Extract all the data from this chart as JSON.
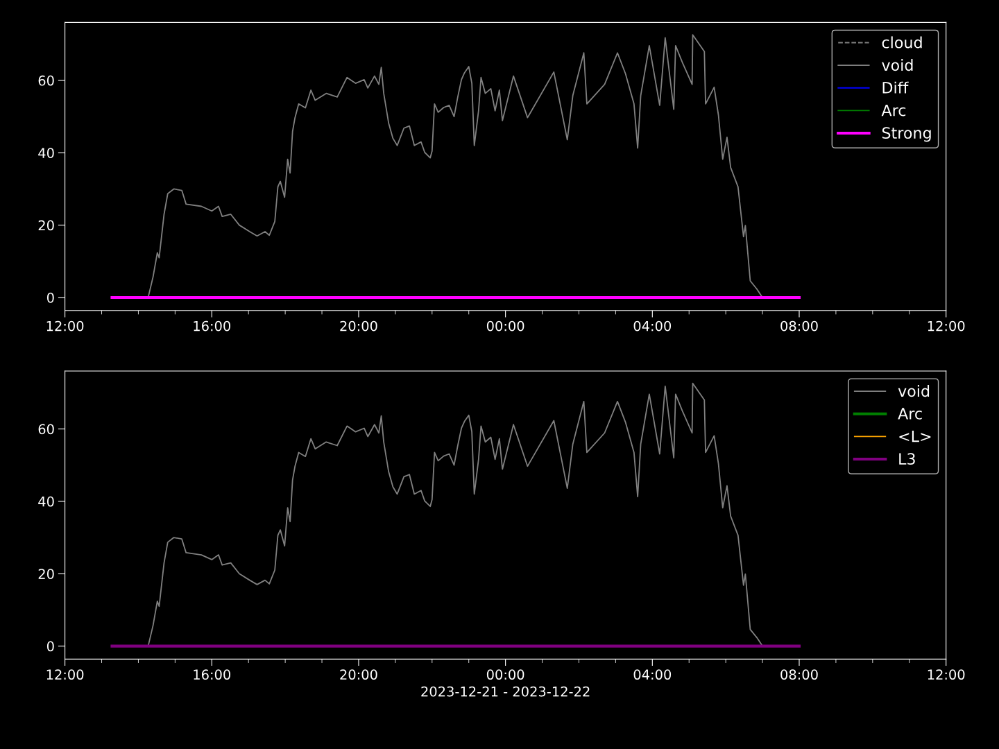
{
  "chart_data": [
    {
      "type": "line",
      "xlim": [
        "2023-12-21T12:00",
        "2023-12-22T12:00"
      ],
      "ylim": [
        -3.6,
        76
      ],
      "yticks": [
        0,
        20,
        40,
        60
      ],
      "xticks": [
        {
          "value": "2023-12-21T12:00",
          "label": "12:00"
        },
        {
          "value": "2023-12-21T13:00",
          "label": null
        },
        {
          "value": "2023-12-21T14:00",
          "label": null
        },
        {
          "value": "2023-12-21T15:00",
          "label": null
        },
        {
          "value": "2023-12-21T16:00",
          "label": "16:00"
        },
        {
          "value": "2023-12-21T17:00",
          "label": null
        },
        {
          "value": "2023-12-21T18:00",
          "label": null
        },
        {
          "value": "2023-12-21T19:00",
          "label": null
        },
        {
          "value": "2023-12-21T20:00",
          "label": "20:00"
        },
        {
          "value": "2023-12-21T21:00",
          "label": null
        },
        {
          "value": "2023-12-21T22:00",
          "label": null
        },
        {
          "value": "2023-12-21T23:00",
          "label": null
        },
        {
          "value": "2023-12-22T00:00",
          "label": "00:00"
        },
        {
          "value": "2023-12-22T01:00",
          "label": null
        },
        {
          "value": "2023-12-22T02:00",
          "label": null
        },
        {
          "value": "2023-12-22T03:00",
          "label": null
        },
        {
          "value": "2023-12-22T04:00",
          "label": "04:00"
        },
        {
          "value": "2023-12-22T05:00",
          "label": null
        },
        {
          "value": "2023-12-22T06:00",
          "label": null
        },
        {
          "value": "2023-12-22T07:00",
          "label": null
        },
        {
          "value": "2023-12-22T08:00",
          "label": "08:00"
        },
        {
          "value": "2023-12-22T09:00",
          "label": null
        },
        {
          "value": "2023-12-22T10:00",
          "label": null
        },
        {
          "value": "2023-12-22T11:00",
          "label": null
        },
        {
          "value": "2023-12-22T12:00",
          "label": "12:00"
        }
      ],
      "legend": "top right",
      "series": [
        {
          "name": "cloud",
          "color": "#808080",
          "line_style": "dashed"
        },
        {
          "name": "void",
          "color": "#808080",
          "line_style": "solid",
          "x": [
            "2023-12-21T14:16",
            "2023-12-21T14:24",
            "2023-12-21T14:31",
            "2023-12-21T14:34",
            "2023-12-21T14:42",
            "2023-12-21T14:48",
            "2023-12-21T14:58",
            "2023-12-21T15:11",
            "2023-12-21T15:18",
            "2023-12-21T15:43",
            "2023-12-21T16:00",
            "2023-12-21T16:11",
            "2023-12-21T16:17",
            "2023-12-21T16:31",
            "2023-12-21T16:45",
            "2023-12-21T17:02",
            "2023-12-21T17:14",
            "2023-12-21T17:27",
            "2023-12-21T17:34",
            "2023-12-21T17:43",
            "2023-12-21T17:48",
            "2023-12-21T17:52",
            "2023-12-21T17:59",
            "2023-12-21T18:04",
            "2023-12-21T18:08",
            "2023-12-21T18:12",
            "2023-12-21T18:16",
            "2023-12-21T18:22",
            "2023-12-21T18:33",
            "2023-12-21T18:42",
            "2023-12-21T18:49",
            "2023-12-21T19:07",
            "2023-12-21T19:25",
            "2023-12-21T19:41",
            "2023-12-21T19:55",
            "2023-12-21T20:09",
            "2023-12-21T20:15",
            "2023-12-21T20:26",
            "2023-12-21T20:33",
            "2023-12-21T20:37",
            "2023-12-21T20:41",
            "2023-12-21T20:49",
            "2023-12-21T20:56",
            "2023-12-21T21:03",
            "2023-12-21T21:14",
            "2023-12-21T21:23",
            "2023-12-21T21:31",
            "2023-12-21T21:42",
            "2023-12-21T21:48",
            "2023-12-21T21:57",
            "2023-12-21T22:00",
            "2023-12-21T22:04",
            "2023-12-21T22:10",
            "2023-12-21T22:19",
            "2023-12-21T22:28",
            "2023-12-21T22:36",
            "2023-12-21T22:42",
            "2023-12-21T22:48",
            "2023-12-21T22:53",
            "2023-12-21T23:00",
            "2023-12-21T23:05",
            "2023-12-21T23:09",
            "2023-12-21T23:16",
            "2023-12-21T23:20",
            "2023-12-21T23:27",
            "2023-12-21T23:36",
            "2023-12-21T23:43",
            "2023-12-21T23:50",
            "2023-12-21T23:55",
            "2023-12-22T00:13",
            "2023-12-22T00:36",
            "2023-12-22T01:19",
            "2023-12-22T01:41",
            "2023-12-22T01:50",
            "2023-12-22T02:08",
            "2023-12-22T02:13",
            "2023-12-22T02:42",
            "2023-12-22T03:03",
            "2023-12-22T03:16",
            "2023-12-22T03:30",
            "2023-12-22T03:36",
            "2023-12-22T03:41",
            "2023-12-22T03:55",
            "2023-12-22T04:12",
            "2023-12-22T04:21",
            "2023-12-22T04:35",
            "2023-12-22T04:38",
            "2023-12-22T04:49",
            "2023-12-22T05:05",
            "2023-12-22T05:06",
            "2023-12-22T05:25",
            "2023-12-22T05:27",
            "2023-12-22T05:41",
            "2023-12-22T05:48",
            "2023-12-22T05:55",
            "2023-12-22T06:02",
            "2023-12-22T06:08",
            "2023-12-22T06:20",
            "2023-12-22T06:29",
            "2023-12-22T06:32",
            "2023-12-22T06:40",
            "2023-12-22T06:51",
            "2023-12-22T07:00"
          ],
          "values": [
            0,
            5.7,
            12.4,
            11,
            23,
            28.7,
            30,
            29.6,
            25.8,
            25.2,
            23.9,
            25.2,
            22.4,
            23,
            20,
            18.2,
            17,
            18.2,
            17.2,
            21,
            30.6,
            32.1,
            27.7,
            38.2,
            34.4,
            45.9,
            49.7,
            53.5,
            52.4,
            57.3,
            54.5,
            56.4,
            55.4,
            60.8,
            59.2,
            60.2,
            57.9,
            61.2,
            58.9,
            63.6,
            56.4,
            48.2,
            44,
            42,
            46.8,
            47.4,
            42,
            43,
            40.1,
            38.6,
            40.5,
            53.5,
            51.2,
            52.5,
            53.1,
            50,
            55.4,
            60.2,
            62.1,
            63.8,
            59.2,
            42,
            51.6,
            60.8,
            56.4,
            57.7,
            51.6,
            57.3,
            48.9,
            61.2,
            49.7,
            62.3,
            43.6,
            55.8,
            67.6,
            53.5,
            58.9,
            67.6,
            61.9,
            53.5,
            41.3,
            55.8,
            69.6,
            53.1,
            71.8,
            52,
            69.6,
            65,
            58.9,
            72.6,
            68,
            53.5,
            58.1,
            50.4,
            38.2,
            44.3,
            35.9,
            30.6,
            16.8,
            19.9,
            4.6,
            2.3,
            0
          ]
        },
        {
          "name": "Diff",
          "color": "#0000ff",
          "line_style": "solid"
        },
        {
          "name": "Arc",
          "color": "#008000",
          "line_style": "solid"
        },
        {
          "name": "Strong",
          "color": "#ff00ff",
          "line_style": "solid",
          "x": [
            "2023-12-21T13:17",
            "2023-12-22T08:00"
          ],
          "values": [
            0,
            0
          ]
        }
      ]
    },
    {
      "type": "line",
      "xlabel": "2023-12-21 - 2023-12-22",
      "xlim": [
        "2023-12-21T12:00",
        "2023-12-22T12:00"
      ],
      "ylim": [
        -3.6,
        76
      ],
      "yticks": [
        0,
        20,
        40,
        60
      ],
      "xticks": [
        {
          "value": "2023-12-21T12:00",
          "label": "12:00"
        },
        {
          "value": "2023-12-21T13:00",
          "label": null
        },
        {
          "value": "2023-12-21T14:00",
          "label": null
        },
        {
          "value": "2023-12-21T15:00",
          "label": null
        },
        {
          "value": "2023-12-21T16:00",
          "label": "16:00"
        },
        {
          "value": "2023-12-21T17:00",
          "label": null
        },
        {
          "value": "2023-12-21T18:00",
          "label": null
        },
        {
          "value": "2023-12-21T19:00",
          "label": null
        },
        {
          "value": "2023-12-21T20:00",
          "label": "20:00"
        },
        {
          "value": "2023-12-21T21:00",
          "label": null
        },
        {
          "value": "2023-12-21T22:00",
          "label": null
        },
        {
          "value": "2023-12-21T23:00",
          "label": null
        },
        {
          "value": "2023-12-22T00:00",
          "label": "00:00"
        },
        {
          "value": "2023-12-22T01:00",
          "label": null
        },
        {
          "value": "2023-12-22T02:00",
          "label": null
        },
        {
          "value": "2023-12-22T03:00",
          "label": null
        },
        {
          "value": "2023-12-22T04:00",
          "label": "04:00"
        },
        {
          "value": "2023-12-22T05:00",
          "label": null
        },
        {
          "value": "2023-12-22T06:00",
          "label": null
        },
        {
          "value": "2023-12-22T07:00",
          "label": null
        },
        {
          "value": "2023-12-22T08:00",
          "label": "08:00"
        },
        {
          "value": "2023-12-22T09:00",
          "label": null
        },
        {
          "value": "2023-12-22T10:00",
          "label": null
        },
        {
          "value": "2023-12-22T11:00",
          "label": null
        },
        {
          "value": "2023-12-22T12:00",
          "label": "12:00"
        }
      ],
      "legend": "top right",
      "series": [
        {
          "name": "void",
          "color": "#808080",
          "line_style": "solid",
          "x": [
            "2023-12-21T14:16",
            "2023-12-21T14:24",
            "2023-12-21T14:31",
            "2023-12-21T14:34",
            "2023-12-21T14:42",
            "2023-12-21T14:48",
            "2023-12-21T14:58",
            "2023-12-21T15:11",
            "2023-12-21T15:18",
            "2023-12-21T15:43",
            "2023-12-21T16:00",
            "2023-12-21T16:11",
            "2023-12-21T16:17",
            "2023-12-21T16:31",
            "2023-12-21T16:45",
            "2023-12-21T17:02",
            "2023-12-21T17:14",
            "2023-12-21T17:27",
            "2023-12-21T17:34",
            "2023-12-21T17:43",
            "2023-12-21T17:48",
            "2023-12-21T17:52",
            "2023-12-21T17:59",
            "2023-12-21T18:04",
            "2023-12-21T18:08",
            "2023-12-21T18:12",
            "2023-12-21T18:16",
            "2023-12-21T18:22",
            "2023-12-21T18:33",
            "2023-12-21T18:42",
            "2023-12-21T18:49",
            "2023-12-21T19:07",
            "2023-12-21T19:25",
            "2023-12-21T19:41",
            "2023-12-21T19:55",
            "2023-12-21T20:09",
            "2023-12-21T20:15",
            "2023-12-21T20:26",
            "2023-12-21T20:33",
            "2023-12-21T20:37",
            "2023-12-21T20:41",
            "2023-12-21T20:49",
            "2023-12-21T20:56",
            "2023-12-21T21:03",
            "2023-12-21T21:14",
            "2023-12-21T21:23",
            "2023-12-21T21:31",
            "2023-12-21T21:42",
            "2023-12-21T21:48",
            "2023-12-21T21:57",
            "2023-12-21T22:00",
            "2023-12-21T22:04",
            "2023-12-21T22:10",
            "2023-12-21T22:19",
            "2023-12-21T22:28",
            "2023-12-21T22:36",
            "2023-12-21T22:42",
            "2023-12-21T22:48",
            "2023-12-21T22:53",
            "2023-12-21T23:00",
            "2023-12-21T23:05",
            "2023-12-21T23:09",
            "2023-12-21T23:16",
            "2023-12-21T23:20",
            "2023-12-21T23:27",
            "2023-12-21T23:36",
            "2023-12-21T23:43",
            "2023-12-21T23:50",
            "2023-12-21T23:55",
            "2023-12-22T00:13",
            "2023-12-22T00:36",
            "2023-12-22T01:19",
            "2023-12-22T01:41",
            "2023-12-22T01:50",
            "2023-12-22T02:08",
            "2023-12-22T02:13",
            "2023-12-22T02:42",
            "2023-12-22T03:03",
            "2023-12-22T03:16",
            "2023-12-22T03:30",
            "2023-12-22T03:36",
            "2023-12-22T03:41",
            "2023-12-22T03:55",
            "2023-12-22T04:12",
            "2023-12-22T04:21",
            "2023-12-22T04:35",
            "2023-12-22T04:38",
            "2023-12-22T04:49",
            "2023-12-22T05:05",
            "2023-12-22T05:06",
            "2023-12-22T05:25",
            "2023-12-22T05:27",
            "2023-12-22T05:41",
            "2023-12-22T05:48",
            "2023-12-22T05:55",
            "2023-12-22T06:02",
            "2023-12-22T06:08",
            "2023-12-22T06:20",
            "2023-12-22T06:29",
            "2023-12-22T06:32",
            "2023-12-22T06:40",
            "2023-12-22T06:51",
            "2023-12-22T07:00"
          ],
          "values": [
            0,
            5.7,
            12.4,
            11,
            23,
            28.7,
            30,
            29.6,
            25.8,
            25.2,
            23.9,
            25.2,
            22.4,
            23,
            20,
            18.2,
            17,
            18.2,
            17.2,
            21,
            30.6,
            32.1,
            27.7,
            38.2,
            34.4,
            45.9,
            49.7,
            53.5,
            52.4,
            57.3,
            54.5,
            56.4,
            55.4,
            60.8,
            59.2,
            60.2,
            57.9,
            61.2,
            58.9,
            63.6,
            56.4,
            48.2,
            44,
            42,
            46.8,
            47.4,
            42,
            43,
            40.1,
            38.6,
            40.5,
            53.5,
            51.2,
            52.5,
            53.1,
            50,
            55.4,
            60.2,
            62.1,
            63.8,
            59.2,
            42,
            51.6,
            60.8,
            56.4,
            57.7,
            51.6,
            57.3,
            48.9,
            61.2,
            49.7,
            62.3,
            43.6,
            55.8,
            67.6,
            53.5,
            58.9,
            67.6,
            61.9,
            53.5,
            41.3,
            55.8,
            69.6,
            53.1,
            71.8,
            52,
            69.6,
            65,
            58.9,
            72.6,
            68,
            53.5,
            58.1,
            50.4,
            38.2,
            44.3,
            35.9,
            30.6,
            16.8,
            19.9,
            4.6,
            2.3,
            0
          ]
        },
        {
          "name": "Arc",
          "color": "#008000",
          "line_style": "solid"
        },
        {
          "name": "<L>",
          "color": "#ffa500",
          "line_style": "solid"
        },
        {
          "name": "L3",
          "color": "#800080",
          "line_style": "solid",
          "x": [
            "2023-12-21T13:17",
            "2023-12-22T08:00"
          ],
          "values": [
            0,
            0
          ]
        }
      ]
    }
  ]
}
